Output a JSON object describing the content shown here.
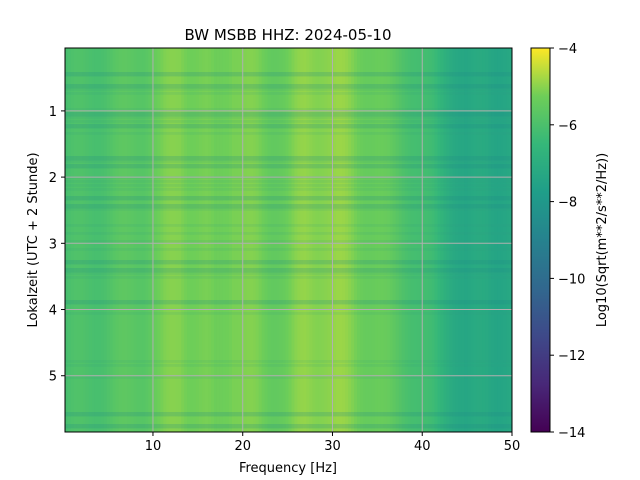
{
  "chart_data": {
    "type": "heatmap",
    "title": "BW MSBB  HHZ: 2024-05-10",
    "xlabel": "Frequency [Hz]",
    "ylabel": "Lokalzeit (UTC + 2 Stunde)",
    "xlim": [
      0.2,
      50
    ],
    "ylim": [
      5.85,
      0.05
    ],
    "y_inverted": true,
    "xticks": [
      10,
      20,
      30,
      40,
      50
    ],
    "yticks": [
      1,
      2,
      3,
      4,
      5
    ],
    "grid": true,
    "colormap": "viridis",
    "colorbar": {
      "label": "Log10(Sqrt(m**2/s**2/Hz))",
      "range": [
        -14,
        -4
      ],
      "ticks": [
        -4,
        -6,
        -8,
        -10,
        -12,
        -14
      ]
    },
    "spectral_profile": {
      "frequency_hz": [
        0.2,
        3,
        6,
        9,
        11,
        13,
        15,
        17,
        19,
        21,
        23,
        25,
        27,
        29,
        31,
        33,
        35,
        37,
        39,
        41,
        43,
        45,
        47,
        50
      ],
      "log_amplitude": [
        -6.1,
        -6.0,
        -5.8,
        -5.6,
        -5.3,
        -5.0,
        -5.2,
        -5.4,
        -5.0,
        -5.2,
        -5.4,
        -5.3,
        -5.0,
        -4.9,
        -5.0,
        -5.2,
        -5.4,
        -5.7,
        -6.0,
        -6.4,
        -6.9,
        -7.4,
        -7.2,
        -7.3
      ]
    }
  }
}
